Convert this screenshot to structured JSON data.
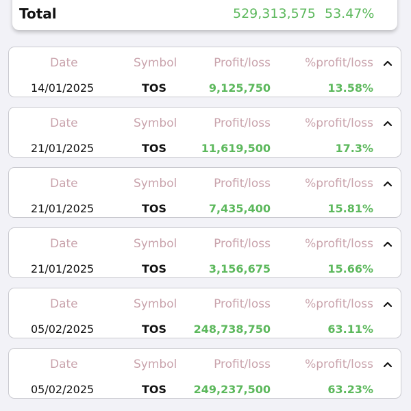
{
  "total": {
    "label": "Total",
    "value": "529,313,575",
    "percent": "53.47%"
  },
  "headers": {
    "date": "Date",
    "symbol": "Symbol",
    "profit": "Profit/loss",
    "percent": "%profit/loss"
  },
  "trades": [
    {
      "date": "14/01/2025",
      "symbol": "TOS",
      "profit": "9,125,750",
      "percent": "13.58%"
    },
    {
      "date": "21/01/2025",
      "symbol": "TOS",
      "profit": "11,619,500",
      "percent": "17.3%"
    },
    {
      "date": "21/01/2025",
      "symbol": "TOS",
      "profit": "7,435,400",
      "percent": "15.81%"
    },
    {
      "date": "21/01/2025",
      "symbol": "TOS",
      "profit": "3,156,675",
      "percent": "15.66%"
    },
    {
      "date": "05/02/2025",
      "symbol": "TOS",
      "profit": "248,738,750",
      "percent": "63.11%"
    },
    {
      "date": "05/02/2025",
      "symbol": "TOS",
      "profit": "249,237,500",
      "percent": "63.23%"
    }
  ],
  "icons": {
    "expand": "chevron-up-icon"
  },
  "colors": {
    "positive": "#5cb85c",
    "header_text": "#c9a3ac",
    "background": "#f2f2f7"
  }
}
